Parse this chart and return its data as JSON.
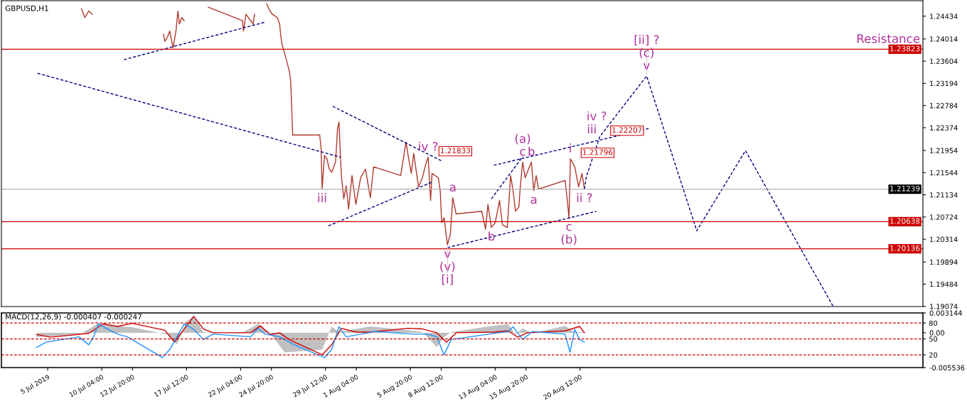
{
  "chart_data": [
    {
      "type": "line",
      "title": "GBPUSD,H1",
      "tick_labels": "y",
      "line_style": "solid",
      "xlim": [
        "2019-07-01T12:00",
        "2019-09-19T03:00"
      ],
      "ylim": [
        1.1907,
        1.2472
      ],
      "yticks": [
        1.24434,
        1.24014,
        1.23604,
        1.23194,
        1.22784,
        1.22374,
        1.21954,
        1.21544,
        1.21134,
        1.20724,
        1.20314,
        1.19894,
        1.19484,
        1.19074
      ],
      "series": [
        {
          "color": "#b03a2e",
          "x": [
            "2019-07-08T10:00",
            "2019-07-08T17:00",
            "2019-07-09T01:00",
            "2019-07-09T08:00",
            "2019-07-09T13:00",
            "2019-07-15T12:00",
            "2019-07-15T15:00",
            "2019-07-15T20:00",
            "2019-07-16T01:00",
            "2019-07-16T08:00",
            "2019-07-16T14:00",
            "2019-07-16T18:00",
            "2019-07-16T21:00",
            "2019-07-17T02:00",
            "2019-07-17T07:00",
            "2019-07-17T10:00",
            "2019-07-19T09:00",
            "2019-07-22T08:00",
            "2019-07-22T10:00",
            "2019-07-22T15:00",
            "2019-07-23T01:00",
            "2019-07-23T06:00",
            "2019-07-23T09:00",
            "2019-07-23T11:00",
            "2019-07-24T10:00",
            "2019-07-24T17:00",
            "2019-07-24T22:00",
            "2019-07-25T08:00",
            "2019-07-25T13:00",
            "2019-07-25T15:00",
            "2019-07-25T18:00",
            "2019-07-26T02:00",
            "2019-07-26T09:00",
            "2019-07-26T12:00",
            "2019-07-26T14:00",
            "2019-07-26T16:00",
            "2019-07-29T00:00",
            "2019-07-29T03:00",
            "2019-07-29T05:00",
            "2019-07-29T10:00",
            "2019-07-29T15:00",
            "2019-07-29T20:00",
            "2019-07-30T01:00",
            "2019-07-30T09:00",
            "2019-07-30T13:00",
            "2019-07-30T16:00",
            "2019-07-30T19:00",
            "2019-07-30T21:00",
            "2019-07-31T02:00",
            "2019-07-31T07:00",
            "2019-07-31T12:00",
            "2019-07-31T19:00",
            "2019-08-01T03:00",
            "2019-08-01T13:00",
            "2019-08-01T23:00",
            "2019-08-02T09:00",
            "2019-08-02T16:00",
            "2019-08-05T00:00",
            "2019-08-05T11:00",
            "2019-08-05T17:00",
            "2019-08-05T22:00",
            "2019-08-06T03:00",
            "2019-08-06T13:00",
            "2019-08-06T21:00",
            "2019-08-07T04:00",
            "2019-08-07T09:00",
            "2019-08-07T14:00",
            "2019-08-07T17:00",
            "2019-08-08T06:00",
            "2019-08-08T10:00",
            "2019-08-08T13:00",
            "2019-08-08T18:00",
            "2019-08-09T01:00",
            "2019-08-09T07:00",
            "2019-08-09T12:00",
            "2019-08-09T19:00",
            "2019-08-12T00:00",
            "2019-08-12T08:00",
            "2019-08-12T13:00",
            "2019-08-12T20:00",
            "2019-08-13T04:00",
            "2019-08-13T13:00",
            "2019-08-13T19:00",
            "2019-08-14T05:00",
            "2019-08-14T12:00",
            "2019-08-14T17:00",
            "2019-08-14T22:00",
            "2019-08-15T05:00",
            "2019-08-15T08:00",
            "2019-08-15T13:00",
            "2019-08-15T18:00",
            "2019-08-16T07:00",
            "2019-08-16T12:00",
            "2019-08-16T17:00",
            "2019-08-16T22:00",
            "2019-08-19T05:00",
            "2019-08-19T10:00",
            "2019-08-19T13:00",
            "2019-08-19T16:00",
            "2019-08-20T01:00",
            "2019-08-20T09:00",
            "2019-08-20T16:00",
            "2019-08-20T21:00"
          ],
          "values": [
            1.2457,
            1.2441,
            1.2453,
            1.2447,
            null,
            1.241,
            1.2397,
            1.2404,
            1.2416,
            1.2385,
            1.2416,
            1.2453,
            1.2429,
            1.2441,
            1.2435,
            null,
            1.246,
            1.2435,
            1.2416,
            1.2447,
            1.2435,
            1.2429,
            1.2447,
            null,
            1.2466,
            1.2453,
            1.2447,
            1.2441,
            1.2429,
            1.241,
            1.2391,
            1.2366,
            1.2342,
            1.2323,
            1.2273,
            1.2224,
            1.2224,
            1.2199,
            1.2124,
            1.2186,
            1.218,
            1.2161,
            1.2155,
            1.2174,
            1.2236,
            1.2248,
            1.2186,
            1.2149,
            1.2106,
            1.213,
            1.2087,
            1.2149,
            1.2096,
            1.2145,
            1.2161,
            1.2108,
            1.2165,
            1.2149,
            1.2211,
            1.2178,
            1.2153,
            1.219,
            1.2128,
            1.2145,
            1.217,
            1.2183,
            1.2103,
            1.2153,
            1.2145,
            1.2121,
            1.2062,
            1.2071,
            1.2021,
            1.2041,
            1.2108,
            1.2078,
            1.2083,
            1.205,
            1.2096,
            1.2053,
            1.2062,
            1.2103,
            1.2058,
            1.2053,
            1.2149,
            1.2121,
            1.2083,
            1.2091,
            1.2128,
            1.2174,
            1.2145,
            1.2174,
            1.2121,
            1.2149,
            1.2124,
            1.214,
            1.2099,
            1.2071,
            1.218,
            1.2165,
            1.2128,
            1.2153,
            1.2124
          ]
        },
        {
          "color": "#000080",
          "line_style": "dashed",
          "x": [
            "2019-08-20T21:00",
            "2019-08-21T01:00",
            "2019-08-22T05:00",
            "2019-08-26T06:00",
            "2019-08-30T14:00",
            "2019-09-03T19:00",
            "2019-09-11T09:00"
          ],
          "values": [
            1.2124,
            1.2147,
            1.2221,
            1.2333,
            1.2047,
            1.2195,
            1.1907
          ]
        },
        {
          "color": "#000080",
          "line_style": "dashed",
          "x": [
            "2019-07-12T02:00",
            "2019-07-24T05:00"
          ],
          "values": [
            1.2363,
            1.2432
          ]
        },
        {
          "color": "#000080",
          "line_style": "dashed",
          "x": [
            "2019-07-04T15:00",
            "2019-07-30T19:00"
          ],
          "values": [
            1.2338,
            1.2183
          ]
        },
        {
          "color": "#000080",
          "line_style": "dashed",
          "x": [
            "2019-07-30T03:00",
            "2019-08-08T13:00"
          ],
          "values": [
            1.2277,
            1.2176
          ]
        },
        {
          "color": "#000080",
          "line_style": "dashed",
          "x": [
            "2019-07-29T18:00",
            "2019-08-07T17:00"
          ],
          "values": [
            1.2056,
            1.2137
          ]
        },
        {
          "color": "#000080",
          "line_style": "dashed",
          "x": [
            "2019-08-09T01:00",
            "2019-08-21T22:00"
          ],
          "values": [
            1.2016,
            1.2083
          ]
        },
        {
          "color": "#000080",
          "line_style": "dashed",
          "x": [
            "2019-08-13T01:00",
            "2019-08-26T10:00"
          ],
          "values": [
            1.2168,
            1.2236
          ]
        },
        {
          "color": "#000080",
          "line_style": "dashed",
          "x": [
            "2019-08-12T20:00",
            "2019-08-15T13:00"
          ],
          "values": [
            1.2106,
            1.2184
          ]
        }
      ],
      "ref_lines": [
        {
          "axis": "y",
          "value": 1.23823,
          "label": "1.23823",
          "color": "#cc0000"
        },
        {
          "axis": "y",
          "value": 1.21239,
          "label": "1.21239",
          "color": "#b0b0b0"
        },
        {
          "axis": "y",
          "value": 1.20638,
          "label": "1.20638",
          "color": "#cc0000"
        },
        {
          "axis": "y",
          "value": 1.20136,
          "label": "1.20136",
          "color": "#cc0000"
        }
      ],
      "annotations": [
        {
          "text": "iii",
          "x": "2019-07-29T05:00",
          "y": 1.2124
        },
        {
          "text": "1.21833",
          "x": "2019-08-07T09:00",
          "y": 1.2183
        },
        {
          "text": "iv ?",
          "x": "2019-08-07T09:00",
          "y": 1.2183
        },
        {
          "text": "a",
          "x": "2019-08-09T12:00",
          "y": 1.2108
        },
        {
          "text": "v",
          "x": "2019-08-09T01:00",
          "y": 1.2021
        },
        {
          "text": "(v)",
          "x": "2019-08-09T01:00",
          "y": 1.2021
        },
        {
          "text": "[i]",
          "x": "2019-08-09T01:00",
          "y": 1.2021
        },
        {
          "text": "b",
          "x": "2019-08-12T20:00",
          "y": 1.2053
        },
        {
          "text": "c",
          "x": "2019-08-15T13:00",
          "y": 1.2174
        },
        {
          "text": "(a)",
          "x": "2019-08-15T13:00",
          "y": 1.2174
        },
        {
          "text": "b",
          "x": "2019-08-16T07:00",
          "y": 1.2174
        },
        {
          "text": "a",
          "x": "2019-08-16T12:00",
          "y": 1.2121
        },
        {
          "text": "c",
          "x": "2019-08-19T13:00",
          "y": 1.2071
        },
        {
          "text": "(b)",
          "x": "2019-08-19T13:00",
          "y": 1.2071
        },
        {
          "text": "1.21796",
          "x": "2019-08-19T16:00",
          "y": 1.218
        },
        {
          "text": "i",
          "x": "2019-08-19T16:00",
          "y": 1.218
        },
        {
          "text": "ii ?",
          "x": "2019-08-20T21:00",
          "y": 1.2124
        },
        {
          "text": "1.22207",
          "x": "2019-08-22T05:00",
          "y": 1.2221
        },
        {
          "text": "iii",
          "x": "2019-08-22T15:00",
          "y": 1.2233
        },
        {
          "text": "iv ?",
          "x": "2019-08-23T12:00",
          "y": 1.2257
        },
        {
          "text": "v",
          "x": "2019-08-26T06:00",
          "y": 1.2333
        },
        {
          "text": "(c)",
          "x": "2019-08-26T06:00",
          "y": 1.2333
        },
        {
          "text": "[ii] ?",
          "x": "2019-08-26T06:00",
          "y": 1.2333
        },
        {
          "text": "Resistance",
          "x": "2019-09-16T03:00",
          "y": 1.23823
        }
      ]
    },
    {
      "type": "line",
      "title": "MACD(12,26,9) -0.000407 -0.000247",
      "xlim": [
        "2019-07-01T12:00",
        "2019-09-19T03:00"
      ],
      "ylim": [
        -0.005536,
        0.003144
      ],
      "y2lim": [
        -4,
        99
      ],
      "xticks": [
        {
          "value": "2019-07-05T12:00",
          "label": "5 Jul 2019"
        },
        {
          "value": "2019-07-10T04:00",
          "label": "10 Jul 04:00"
        },
        {
          "value": "2019-07-12T20:00",
          "label": "12 Jul 20:00"
        },
        {
          "value": "2019-07-17T12:00",
          "label": "17 Jul 12:00"
        },
        {
          "value": "2019-07-22T04:00",
          "label": "22 Jul 04:00"
        },
        {
          "value": "2019-07-24T20:00",
          "label": "24 Jul 20:00"
        },
        {
          "value": "2019-07-29T12:00",
          "label": "29 Jul 12:00"
        },
        {
          "value": "2019-08-01T04:00",
          "label": "1 Aug 04:00"
        },
        {
          "value": "2019-08-05T20:00",
          "label": "5 Aug 20:00"
        },
        {
          "value": "2019-08-08T12:00",
          "label": "8 Aug 12:00"
        },
        {
          "value": "2019-08-13T04:00",
          "label": "13 Aug 04:00"
        },
        {
          "value": "2019-08-15T20:00",
          "label": "15 Aug 20:00"
        },
        {
          "value": "2019-08-20T12:00",
          "label": "20 Aug 12:00"
        }
      ],
      "yticks": [
        0.003144,
        {
          "value": 0,
          "label": "0.00"
        },
        -0.005536
      ],
      "y2ticks": [
        80,
        50,
        20
      ],
      "series": [
        {
          "type": "area",
          "color": "#c0c0c0",
          "x": [
            "2019-07-04T13:00",
            "2019-07-08T05:00",
            "2019-07-09T21:00",
            "2019-07-11T03:00",
            "2019-07-12T19:00",
            "2019-07-15T20:00",
            "2019-07-16T16:00",
            "2019-07-17T12:00",
            "2019-07-18T03:00",
            "2019-07-18T23:00",
            "2019-07-22T05:00",
            "2019-07-23T16:00",
            "2019-07-24T17:00",
            "2019-07-25T23:00",
            "2019-07-29T05:00",
            "2019-07-30T01:00",
            "2019-07-30T16:00",
            "2019-08-01T03:00",
            "2019-08-02T09:00",
            "2019-08-05T15:00",
            "2019-08-06T21:00",
            "2019-08-08T03:00",
            "2019-08-08T18:00",
            "2019-08-09T09:00",
            "2019-08-12T15:00",
            "2019-08-14T07:00",
            "2019-08-14T22:00",
            "2019-08-15T13:00",
            "2019-08-16T09:00",
            "2019-08-19T05:00",
            "2019-08-20T01:00",
            "2019-08-20T21:00"
          ],
          "values": [
            -0.0007,
            -0.0003,
            0.0015,
            0.0011,
            0.0009,
            -0.0003,
            -0.0019,
            0.0018,
            0.0027,
            0.0001,
            -0.0001,
            0.0014,
            0,
            -0.0031,
            -0.0027,
            0.001,
            0.0001,
            0.0006,
            0.001,
            0.0004,
            0.0001,
            -0.0023,
            -0.0007,
            0.0001,
            0.001,
            0.0014,
            -0.0003,
            0.0007,
            -0.0001,
            0.0011,
            0.0001,
            0.0001
          ]
        },
        {
          "type": "line",
          "color": "#cc0000",
          "x": [
            "2019-07-04T13:00",
            "2019-07-05T19:00",
            "2019-07-09T01:00",
            "2019-07-10T07:00",
            "2019-07-11T13:00",
            "2019-07-12T19:00",
            "2019-07-15T15:00",
            "2019-07-16T11:00",
            "2019-07-17T07:00",
            "2019-07-18T03:00",
            "2019-07-18T23:00",
            "2019-07-19T19:00",
            "2019-07-23T01:00",
            "2019-07-23T21:00",
            "2019-07-24T17:00",
            "2019-07-25T13:00",
            "2019-07-26T09:00",
            "2019-07-29T05:00",
            "2019-07-30T01:00",
            "2019-07-30T21:00",
            "2019-08-01T03:00",
            "2019-08-02T09:00",
            "2019-08-05T15:00",
            "2019-08-06T21:00",
            "2019-08-08T03:00",
            "2019-08-08T23:00",
            "2019-08-09T19:00",
            "2019-08-13T01:00",
            "2019-08-14T07:00",
            "2019-08-15T03:00",
            "2019-08-15T23:00",
            "2019-08-19T05:00",
            "2019-08-20T11:00",
            "2019-08-20T21:00"
          ],
          "values": [
            -0.0003,
            -0.0007,
            -0.0001,
            0.0014,
            0.001,
            0.0015,
            0.0004,
            -0.0015,
            0.0006,
            0.0026,
            0.0006,
            0,
            0,
            0.0011,
            -0.0003,
            0,
            -0.0011,
            -0.0035,
            -0.0019,
            0.0007,
            0.0001,
            0.0001,
            0.0007,
            0.0006,
            0,
            -0.0015,
            0,
            0.0001,
            0.0003,
            -0.0007,
            0,
            0.0003,
            0.001,
            0
          ]
        },
        {
          "type": "line",
          "axis": "y2",
          "color": "#1e90ff",
          "x": [
            "2019-07-04T13:00",
            "2019-07-05T09:00",
            "2019-07-08T05:00",
            "2019-07-09T01:00",
            "2019-07-09T11:00",
            "2019-07-09T21:00",
            "2019-07-10T17:00",
            "2019-07-11T13:00",
            "2019-07-12T09:00",
            "2019-07-15T10:00",
            "2019-07-16T01:00",
            "2019-07-17T07:00",
            "2019-07-18T03:00",
            "2019-07-18T23:00",
            "2019-07-19T19:00",
            "2019-07-23T01:00",
            "2019-07-23T16:00",
            "2019-07-24T07:00",
            "2019-07-25T13:00",
            "2019-07-26T19:00",
            "2019-07-29T10:00",
            "2019-07-30T01:00",
            "2019-07-30T16:00",
            "2019-07-31T07:00",
            "2019-08-01T13:00",
            "2019-08-02T19:00",
            "2019-08-06T01:00",
            "2019-08-07T07:00",
            "2019-08-08T03:00",
            "2019-08-08T18:00",
            "2019-08-09T09:00",
            "2019-08-12T15:00",
            "2019-08-14T07:00",
            "2019-08-14T17:00",
            "2019-08-15T13:00",
            "2019-08-16T09:00",
            "2019-08-19T05:00",
            "2019-08-19T15:00",
            "2019-08-20T01:00",
            "2019-08-20T11:00",
            "2019-08-20T21:00"
          ],
          "values": [
            34,
            44,
            54,
            39,
            54,
            78,
            68,
            59,
            54,
            15,
            30,
            78,
            68,
            49,
            59,
            54,
            70,
            59,
            54,
            39,
            15,
            30,
            73,
            54,
            59,
            64,
            59,
            59,
            54,
            20,
            49,
            59,
            64,
            73,
            49,
            64,
            59,
            25,
            68,
            49,
            44
          ]
        }
      ],
      "ref_lines": [
        {
          "axis": "y2",
          "value": 80,
          "color": "#cc0000",
          "line_style": "dashed"
        },
        {
          "axis": "y2",
          "value": 50,
          "color": "#cc0000",
          "line_style": "dashed"
        },
        {
          "axis": "y2",
          "value": 20,
          "color": "#cc0000",
          "line_style": "dashed"
        }
      ]
    }
  ]
}
